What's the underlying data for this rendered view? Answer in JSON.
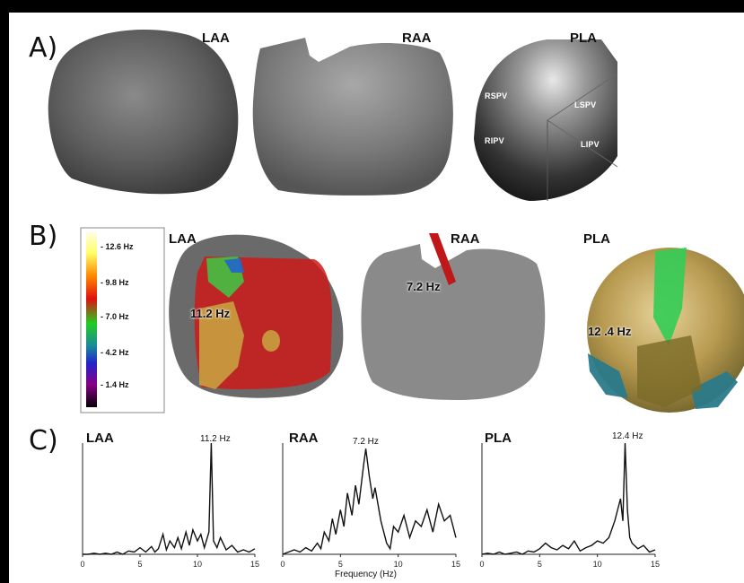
{
  "panels": {
    "A": "A)",
    "B": "B)",
    "C": "C)"
  },
  "panel_a": {
    "labels": [
      "LAA",
      "RAA",
      "PLA"
    ],
    "pla_veins": [
      "RSPV",
      "LSPV",
      "RIPV",
      "LIPV"
    ]
  },
  "panel_b": {
    "labels": [
      "LAA",
      "RAA",
      "PLA"
    ],
    "legend_ticks": [
      "- 12.6 Hz",
      "- 9.8 Hz",
      "- 7.0 Hz",
      "- 4.2 Hz",
      "- 1.4 Hz"
    ],
    "dominant_freqs": [
      "11.2 Hz",
      "7.2 Hz",
      "12 .4 Hz"
    ]
  },
  "panel_c": {
    "labels": [
      "LAA",
      "RAA",
      "PLA"
    ],
    "peak_labels": [
      "11.2 Hz",
      "7.2 Hz",
      "12.4 Hz"
    ],
    "xlabel": "Frequency (Hz)",
    "x_ticks": [
      "0",
      "5",
      "10",
      "15"
    ]
  },
  "chart_data": [
    {
      "type": "line",
      "title": "LAA",
      "xlim": [
        0,
        15
      ],
      "x": [
        0,
        0.5,
        1,
        1.5,
        2,
        2.5,
        3,
        3.5,
        4,
        4.5,
        5,
        5.5,
        6,
        6.3,
        6.6,
        7,
        7.3,
        7.6,
        8,
        8.3,
        8.6,
        9,
        9.3,
        9.6,
        10,
        10.3,
        10.6,
        11,
        11.2,
        11.4,
        11.7,
        12,
        12.5,
        13,
        13.5,
        14,
        14.5,
        15
      ],
      "y": [
        0.0,
        0.0,
        0.01,
        0.0,
        0.01,
        0.0,
        0.02,
        0.0,
        0.03,
        0.02,
        0.06,
        0.02,
        0.07,
        0.02,
        0.05,
        0.18,
        0.04,
        0.12,
        0.06,
        0.15,
        0.05,
        0.2,
        0.08,
        0.22,
        0.12,
        0.18,
        0.06,
        0.2,
        1.0,
        0.12,
        0.06,
        0.15,
        0.04,
        0.08,
        0.02,
        0.04,
        0.02,
        0.05
      ]
    },
    {
      "type": "line",
      "title": "RAA",
      "xlim": [
        0,
        15
      ],
      "x": [
        0,
        0.5,
        1,
        1.5,
        2,
        2.5,
        3,
        3.3,
        3.6,
        4,
        4.3,
        4.6,
        5,
        5.3,
        5.6,
        6,
        6.3,
        6.6,
        7,
        7.2,
        7.5,
        7.8,
        8,
        8.5,
        9,
        9.3,
        9.6,
        10,
        10.5,
        11,
        11.5,
        12,
        12.5,
        13,
        13.5,
        14,
        14.5,
        15
      ],
      "y": [
        0.0,
        0.02,
        0.04,
        0.02,
        0.06,
        0.03,
        0.1,
        0.05,
        0.2,
        0.12,
        0.32,
        0.18,
        0.4,
        0.25,
        0.55,
        0.35,
        0.62,
        0.45,
        0.8,
        0.95,
        0.7,
        0.5,
        0.6,
        0.3,
        0.1,
        0.05,
        0.25,
        0.2,
        0.35,
        0.15,
        0.3,
        0.25,
        0.4,
        0.2,
        0.45,
        0.3,
        0.35,
        0.15
      ]
    },
    {
      "type": "line",
      "title": "PLA",
      "xlim": [
        0,
        15
      ],
      "x": [
        0,
        0.5,
        1,
        1.5,
        2,
        2.5,
        3,
        3.5,
        4,
        4.5,
        5,
        5.5,
        6,
        6.5,
        7,
        7.5,
        8,
        8.5,
        9,
        9.5,
        10,
        10.5,
        11,
        11.5,
        12,
        12.2,
        12.4,
        12.6,
        12.8,
        13,
        13.5,
        14,
        14.5,
        15
      ],
      "y": [
        0.0,
        0.01,
        0.0,
        0.02,
        0.0,
        0.01,
        0.02,
        0.0,
        0.03,
        0.02,
        0.05,
        0.1,
        0.06,
        0.04,
        0.08,
        0.05,
        0.12,
        0.03,
        0.06,
        0.08,
        0.12,
        0.1,
        0.15,
        0.3,
        0.5,
        0.3,
        1.0,
        0.4,
        0.15,
        0.1,
        0.05,
        0.08,
        0.02,
        0.04
      ]
    }
  ]
}
